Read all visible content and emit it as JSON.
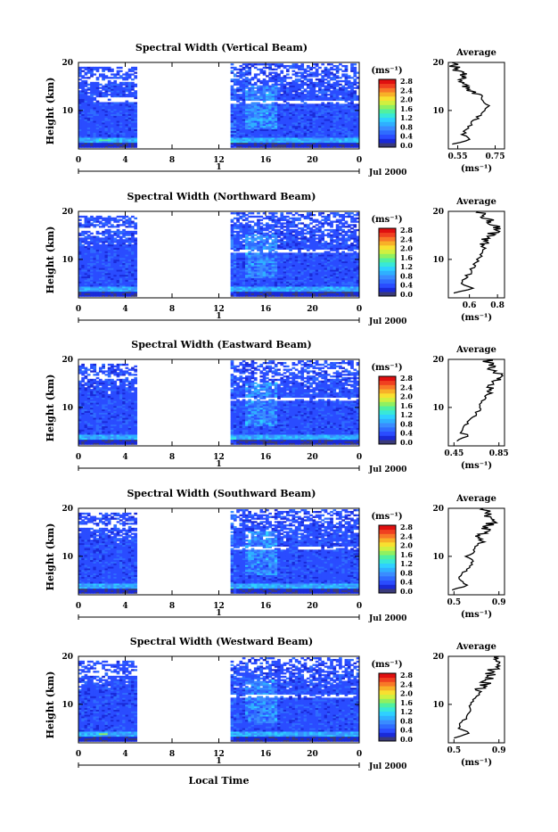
{
  "figure": {
    "xlabel": "Local Time",
    "date_label": "Jul 2000",
    "day_label": "1",
    "avg_title": "Average",
    "units": "(ms⁻¹)",
    "ylabel": "Height (km)"
  },
  "chart_data": [
    {
      "type": "heatmap",
      "title": "Spectral Width (Vertical Beam)",
      "xlabel": "Local Time",
      "ylabel": "Height (km)",
      "x_ticks": [
        "0",
        "4",
        "8",
        "12",
        "16",
        "20",
        "0"
      ],
      "y_ticks": [
        "10",
        "20"
      ],
      "xlim": [
        0,
        24
      ],
      "ylim": [
        2,
        20
      ],
      "data_gap": [
        5,
        13
      ],
      "colorbar": {
        "label": "(ms⁻¹)",
        "ticks": [
          "0.0",
          "0.4",
          "0.8",
          "1.2",
          "1.6",
          "2.0",
          "2.4",
          "2.8"
        ],
        "range": [
          0,
          2.8
        ]
      },
      "average_profile": {
        "title": "Average",
        "xlabel": "(ms⁻¹)",
        "x_ticks": [
          "0.55",
          "0.75"
        ],
        "xlim": [
          0.5,
          0.8
        ],
        "y_ticks": [
          "10",
          "20"
        ],
        "height_km": [
          3,
          4,
          5,
          6,
          7,
          8,
          9,
          10,
          11,
          12,
          13,
          14,
          15,
          16,
          17,
          18,
          19,
          20
        ],
        "values": [
          0.53,
          0.62,
          0.58,
          0.59,
          0.62,
          0.64,
          0.67,
          0.7,
          0.72,
          0.68,
          0.66,
          0.63,
          0.6,
          0.58,
          0.6,
          0.56,
          0.54,
          0.52
        ]
      }
    },
    {
      "type": "heatmap",
      "title": "Spectral Width (Northward Beam)",
      "xlabel": "Local Time",
      "ylabel": "Height (km)",
      "x_ticks": [
        "0",
        "4",
        "8",
        "12",
        "16",
        "20",
        "0"
      ],
      "y_ticks": [
        "10",
        "20"
      ],
      "xlim": [
        0,
        24
      ],
      "ylim": [
        2,
        20
      ],
      "data_gap": [
        5,
        13
      ],
      "colorbar": {
        "label": "(ms⁻¹)",
        "ticks": [
          "0.0",
          "0.4",
          "0.8",
          "1.2",
          "1.6",
          "2.0",
          "2.4",
          "2.8"
        ],
        "range": [
          0,
          2.8
        ]
      },
      "average_profile": {
        "title": "Average",
        "xlabel": "(ms⁻¹)",
        "x_ticks": [
          "0.6",
          "0.8"
        ],
        "xlim": [
          0.45,
          0.85
        ],
        "y_ticks": [
          "10",
          "20"
        ],
        "height_km": [
          3,
          4,
          5,
          6,
          7,
          8,
          9,
          10,
          11,
          12,
          13,
          14,
          15,
          16,
          17,
          18,
          19,
          20
        ],
        "values": [
          0.5,
          0.62,
          0.54,
          0.56,
          0.6,
          0.62,
          0.64,
          0.66,
          0.68,
          0.7,
          0.7,
          0.72,
          0.75,
          0.78,
          0.8,
          0.74,
          0.7,
          0.66
        ]
      }
    },
    {
      "type": "heatmap",
      "title": "Spectral Width (Eastward Beam)",
      "xlabel": "Local Time",
      "ylabel": "Height (km)",
      "x_ticks": [
        "0",
        "4",
        "8",
        "12",
        "16",
        "20",
        "0"
      ],
      "y_ticks": [
        "10",
        "20"
      ],
      "xlim": [
        0,
        24
      ],
      "ylim": [
        2,
        20
      ],
      "data_gap": [
        5,
        13
      ],
      "colorbar": {
        "label": "(ms⁻¹)",
        "ticks": [
          "0.0",
          "0.4",
          "0.8",
          "1.2",
          "1.6",
          "2.0",
          "2.4",
          "2.8"
        ],
        "range": [
          0,
          2.8
        ]
      },
      "average_profile": {
        "title": "Average",
        "xlabel": "(ms⁻¹)",
        "x_ticks": [
          "0.45",
          "0.85"
        ],
        "xlim": [
          0.4,
          0.9
        ],
        "y_ticks": [
          "10",
          "20"
        ],
        "height_km": [
          3,
          4,
          5,
          6,
          7,
          8,
          9,
          10,
          11,
          12,
          13,
          14,
          15,
          16,
          17,
          18,
          19,
          20
        ],
        "values": [
          0.48,
          0.58,
          0.5,
          0.54,
          0.58,
          0.62,
          0.66,
          0.68,
          0.7,
          0.72,
          0.74,
          0.76,
          0.8,
          0.82,
          0.84,
          0.8,
          0.78,
          0.74
        ]
      }
    },
    {
      "type": "heatmap",
      "title": "Spectral Width (Southward Beam)",
      "xlabel": "Local Time",
      "ylabel": "Height (km)",
      "x_ticks": [
        "0",
        "4",
        "8",
        "12",
        "16",
        "20",
        "0"
      ],
      "y_ticks": [
        "10",
        "20"
      ],
      "xlim": [
        0,
        24
      ],
      "ylim": [
        2,
        20
      ],
      "data_gap": [
        5,
        13
      ],
      "colorbar": {
        "label": "(ms⁻¹)",
        "ticks": [
          "0.0",
          "0.4",
          "0.8",
          "1.2",
          "1.6",
          "2.0",
          "2.4",
          "2.8"
        ],
        "range": [
          0,
          2.8
        ]
      },
      "average_profile": {
        "title": "Average",
        "xlabel": "(ms⁻¹)",
        "x_ticks": [
          "0.5",
          "0.9"
        ],
        "xlim": [
          0.45,
          0.95
        ],
        "y_ticks": [
          "10",
          "20"
        ],
        "height_km": [
          3,
          4,
          5,
          6,
          7,
          8,
          9,
          10,
          11,
          12,
          13,
          14,
          15,
          16,
          17,
          18,
          19,
          20
        ],
        "values": [
          0.5,
          0.62,
          0.54,
          0.56,
          0.6,
          0.64,
          0.66,
          0.62,
          0.68,
          0.7,
          0.74,
          0.72,
          0.78,
          0.8,
          0.84,
          0.82,
          0.8,
          0.76
        ]
      }
    },
    {
      "type": "heatmap",
      "title": "Spectral Width (Westward Beam)",
      "xlabel": "Local Time",
      "ylabel": "Height (km)",
      "x_ticks": [
        "0",
        "4",
        "8",
        "12",
        "16",
        "20",
        "0"
      ],
      "y_ticks": [
        "10",
        "20"
      ],
      "xlim": [
        0,
        24
      ],
      "ylim": [
        2,
        20
      ],
      "data_gap": [
        5,
        13
      ],
      "colorbar": {
        "label": "(ms⁻¹)",
        "ticks": [
          "0.0",
          "0.4",
          "0.8",
          "1.2",
          "1.6",
          "2.0",
          "2.4",
          "2.8"
        ],
        "range": [
          0,
          2.8
        ]
      },
      "average_profile": {
        "title": "Average",
        "xlabel": "(ms⁻¹)",
        "x_ticks": [
          "0.5",
          "0.9"
        ],
        "xlim": [
          0.45,
          0.95
        ],
        "y_ticks": [
          "10",
          "20"
        ],
        "height_km": [
          3,
          4,
          5,
          6,
          7,
          8,
          9,
          10,
          11,
          12,
          13,
          14,
          15,
          16,
          17,
          18,
          19,
          20
        ],
        "values": [
          0.5,
          0.64,
          0.54,
          0.56,
          0.6,
          0.62,
          0.64,
          0.66,
          0.68,
          0.72,
          0.74,
          0.76,
          0.8,
          0.82,
          0.84,
          0.86,
          0.88,
          0.9
        ]
      }
    }
  ]
}
